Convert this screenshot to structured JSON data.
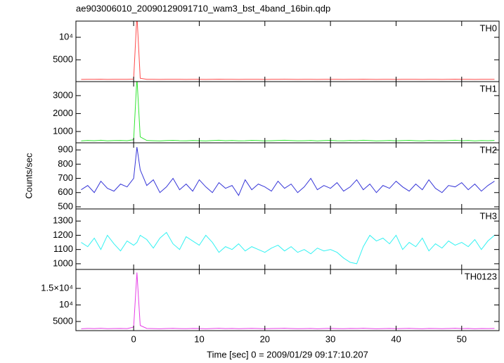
{
  "figure": {
    "title": "ae903006010_20090129091710_wam3_bst_4band_16bin.qdp",
    "ylabel": "Counts/sec",
    "xlabel": "Time [sec] 0 = 2009/01/29 09:17:10.207",
    "xlim": [
      -8.8,
      55.7
    ],
    "xticks": [
      0,
      10,
      20,
      30,
      40,
      50
    ],
    "x": [
      -8,
      -7,
      -6,
      -5,
      -4,
      -3,
      -2,
      -1,
      0,
      0.5,
      1,
      2,
      3,
      4,
      5,
      6,
      7,
      8,
      9,
      10,
      11,
      12,
      13,
      14,
      15,
      16,
      17,
      18,
      19,
      20,
      21,
      22,
      23,
      24,
      25,
      26,
      27,
      28,
      29,
      30,
      31,
      32,
      33,
      34,
      35,
      36,
      37,
      38,
      39,
      40,
      41,
      42,
      43,
      44,
      45,
      46,
      47,
      48,
      49,
      50,
      51,
      52,
      53,
      54,
      55
    ]
  },
  "chart_data": [
    {
      "type": "line",
      "name": "TH0",
      "color": "#ff4a4a",
      "ylim": [
        150,
        13600
      ],
      "yticks": [
        5000,
        {
          "value": 10000,
          "label": "10⁴"
        }
      ],
      "values": [
        640,
        660,
        650,
        670,
        645,
        655,
        660,
        650,
        700,
        15000,
        900,
        660,
        650,
        640,
        655,
        665,
        650,
        645,
        660,
        650,
        640,
        655,
        670,
        650,
        660,
        645,
        650,
        665,
        655,
        640,
        650,
        660,
        670,
        655,
        645,
        650,
        660,
        640,
        655,
        665,
        650,
        645,
        660,
        650,
        670,
        655,
        640,
        650,
        660,
        645,
        655,
        665,
        650,
        640,
        660,
        650,
        645,
        655,
        670,
        650,
        660,
        640,
        655,
        650,
        660
      ]
    },
    {
      "type": "line",
      "name": "TH1",
      "color": "#33e633",
      "ylim": [
        370,
        3780
      ],
      "yticks": [
        1000,
        2000,
        3000
      ],
      "values": [
        480,
        500,
        490,
        510,
        485,
        495,
        500,
        490,
        540,
        4000,
        700,
        500,
        490,
        480,
        495,
        505,
        490,
        485,
        500,
        490,
        480,
        495,
        510,
        490,
        500,
        485,
        490,
        505,
        495,
        480,
        490,
        500,
        510,
        495,
        485,
        490,
        500,
        480,
        495,
        505,
        490,
        485,
        500,
        490,
        510,
        495,
        480,
        490,
        500,
        485,
        495,
        505,
        490,
        480,
        500,
        490,
        485,
        495,
        510,
        490,
        500,
        480,
        495,
        490,
        500
      ]
    },
    {
      "type": "line",
      "name": "TH2",
      "color": "#3636d8",
      "ylim": [
        485,
        950
      ],
      "yticks": [
        500,
        600,
        700,
        800,
        900
      ],
      "values": [
        620,
        650,
        600,
        680,
        630,
        610,
        660,
        640,
        700,
        920,
        760,
        650,
        690,
        600,
        640,
        700,
        620,
        660,
        610,
        690,
        640,
        600,
        670,
        630,
        650,
        580,
        690,
        620,
        660,
        640,
        610,
        680,
        630,
        660,
        600,
        640,
        700,
        620,
        650,
        630,
        670,
        610,
        640,
        690,
        620,
        660,
        600,
        650,
        630,
        680,
        640,
        610,
        660,
        620,
        690,
        630,
        600,
        650,
        640,
        670,
        620,
        660,
        610,
        650,
        680
      ]
    },
    {
      "type": "line",
      "name": "TH3",
      "color": "#33f2f2",
      "ylim": [
        960,
        1385
      ],
      "yticks": [
        1000,
        1100,
        1200,
        1300
      ],
      "values": [
        1150,
        1120,
        1180,
        1100,
        1200,
        1140,
        1090,
        1160,
        1130,
        1150,
        1200,
        1170,
        1110,
        1180,
        1220,
        1140,
        1100,
        1190,
        1160,
        1130,
        1200,
        1150,
        1080,
        1120,
        1100,
        1140,
        1090,
        1120,
        1100,
        1080,
        1110,
        1130,
        1090,
        1120,
        1080,
        1100,
        1070,
        1110,
        1090,
        1100,
        1080,
        1040,
        1010,
        1000,
        1120,
        1200,
        1160,
        1180,
        1140,
        1200,
        1100,
        1150,
        1120,
        1180,
        1090,
        1140,
        1110,
        1160,
        1130,
        1150,
        1120,
        1170,
        1100,
        1160,
        1200
      ]
    },
    {
      "type": "line",
      "name": "TH0123",
      "color": "#e63ee6",
      "ylim": [
        2230,
        20740
      ],
      "yticks": [
        5000,
        {
          "value": 10000,
          "label": "10⁴"
        },
        {
          "value": 15000,
          "label": "1.5×10⁴"
        }
      ],
      "values": [
        2800,
        2900,
        2850,
        2950,
        2820,
        2880,
        2900,
        2850,
        3300,
        19800,
        3800,
        2900,
        2850,
        2800,
        2880,
        2920,
        2850,
        2820,
        2900,
        2860,
        2800,
        2880,
        2950,
        2850,
        2900,
        2820,
        2860,
        2920,
        2880,
        2800,
        2860,
        2900,
        2950,
        2880,
        2820,
        2850,
        2900,
        2800,
        2880,
        2920,
        2850,
        2820,
        2900,
        2860,
        2950,
        2880,
        2800,
        2850,
        2900,
        2820,
        2880,
        2920,
        2850,
        2800,
        2900,
        2860,
        2820,
        2880,
        2950,
        2850,
        2900,
        2800,
        2880,
        2850,
        2900
      ]
    }
  ]
}
